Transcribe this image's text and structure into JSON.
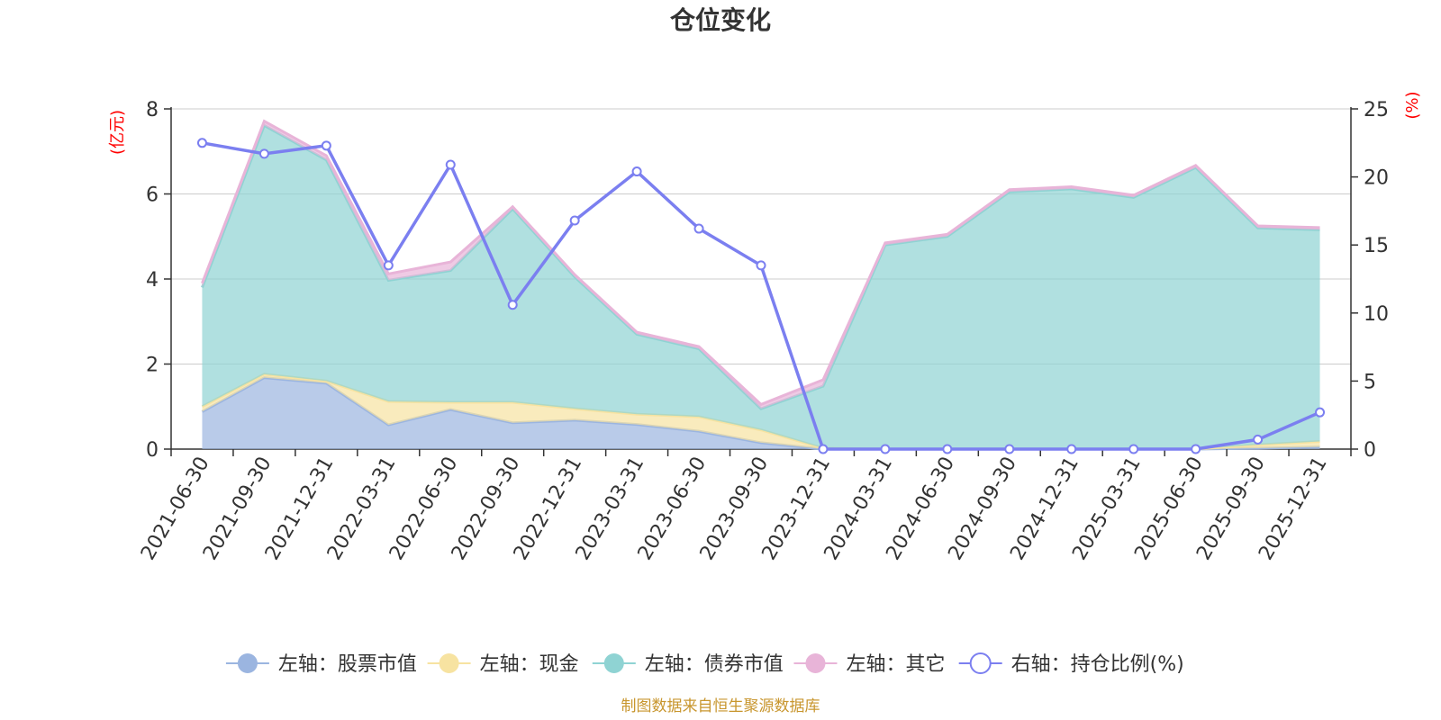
{
  "chart_data": {
    "type": "area",
    "title": "仓位变化",
    "left_unit": "(亿元)",
    "right_unit": "(%)",
    "source": "制图数据来自恒生聚源数据库",
    "categories": [
      "2021-06-30",
      "2021-09-30",
      "2021-12-31",
      "2022-03-31",
      "2022-06-30",
      "2022-09-30",
      "2022-12-31",
      "2023-03-31",
      "2023-06-30",
      "2023-09-30",
      "2023-12-31",
      "2024-03-31",
      "2024-06-30",
      "2024-09-30",
      "2024-12-31",
      "2025-03-31",
      "2025-06-30",
      "2025-09-30",
      "2025-12-31"
    ],
    "left_ylim": [
      0,
      8
    ],
    "left_ticks": [
      "0",
      "2",
      "4",
      "6",
      "8"
    ],
    "right_ylim": [
      0,
      25
    ],
    "right_ticks": [
      "0",
      "5",
      "10",
      "15",
      "20",
      "25"
    ],
    "stacked_series": [
      {
        "name": "左轴：股票市值",
        "color": "#9bb5e0",
        "values": [
          0.88,
          1.68,
          1.55,
          0.57,
          0.93,
          0.62,
          0.68,
          0.58,
          0.42,
          0.15,
          0.0,
          0.0,
          0.0,
          0.0,
          0.0,
          0.0,
          0.0,
          0.02,
          0.05
        ]
      },
      {
        "name": "左轴：现金",
        "color": "#f7e3a1",
        "values": [
          0.12,
          0.08,
          0.05,
          0.55,
          0.17,
          0.48,
          0.27,
          0.24,
          0.34,
          0.3,
          0.02,
          0.0,
          0.0,
          0.0,
          0.0,
          0.0,
          0.0,
          0.08,
          0.13
        ]
      },
      {
        "name": "左轴：债券市值",
        "color": "#8fd3d3",
        "values": [
          2.8,
          5.85,
          5.2,
          2.85,
          3.1,
          4.55,
          3.1,
          1.88,
          1.6,
          0.5,
          1.46,
          4.8,
          5.0,
          6.05,
          6.12,
          5.92,
          6.62,
          5.1,
          4.98
        ]
      },
      {
        "name": "左轴：其它",
        "color": "#e8b4d8",
        "values": [
          0.1,
          0.1,
          0.1,
          0.15,
          0.2,
          0.05,
          0.05,
          0.05,
          0.05,
          0.1,
          0.15,
          0.05,
          0.05,
          0.05,
          0.05,
          0.05,
          0.05,
          0.05,
          0.05
        ]
      }
    ],
    "line_series": {
      "name": "右轴：持仓比例(%)",
      "color": "#7b7ff0",
      "values": [
        22.5,
        21.7,
        22.3,
        13.5,
        20.9,
        10.6,
        16.8,
        20.4,
        16.2,
        13.5,
        0.0,
        0.0,
        0.0,
        0.0,
        0.0,
        0.0,
        0.0,
        0.7,
        2.7
      ]
    }
  }
}
